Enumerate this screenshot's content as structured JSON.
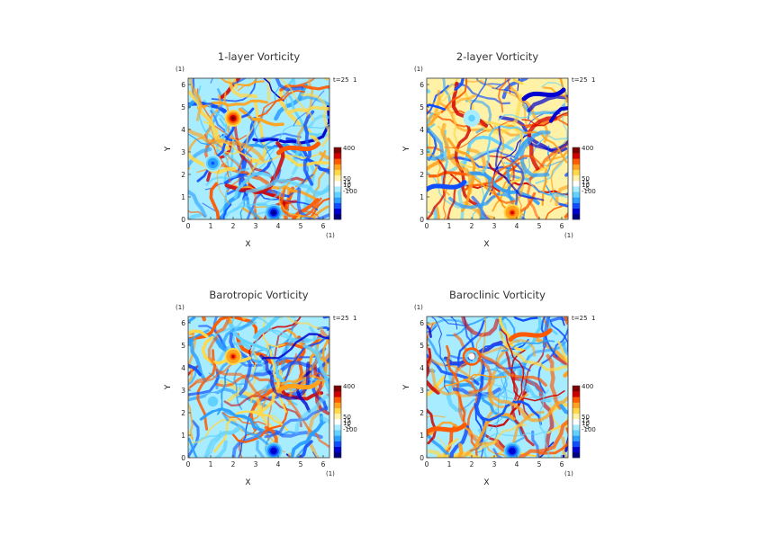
{
  "chart_data": [
    {
      "type": "heatmap",
      "title": "1-layer Vorticity",
      "xlabel": "X",
      "ylabel": "Y",
      "x_unit": "(1)",
      "y_unit": "(1)",
      "time_label": "t=25",
      "time_unit": "1",
      "xlim": [
        0,
        6.28
      ],
      "ylim": [
        0,
        6.28
      ],
      "xticks": [
        "0",
        "1",
        "2",
        "3",
        "4",
        "5",
        "6"
      ],
      "yticks": [
        "0",
        "1",
        "2",
        "3",
        "4",
        "5",
        "6"
      ],
      "colorbar_ticks": [
        "400",
        "50",
        "15",
        "10",
        "-5",
        "-100"
      ],
      "features": [
        {
          "kind": "positive vortex",
          "x": 2.0,
          "y": 4.5,
          "strength": 1.0
        },
        {
          "kind": "negative vortex",
          "x": 3.8,
          "y": 0.3,
          "strength": -1.0
        },
        {
          "kind": "negative vortex",
          "x": 1.1,
          "y": 2.5,
          "strength": -0.6
        },
        {
          "kind": "positive filament",
          "x": 4.9,
          "y": 3.2,
          "strength": 0.7
        }
      ]
    },
    {
      "type": "heatmap",
      "title": "2-layer Vorticity",
      "xlabel": "X",
      "ylabel": "Y",
      "x_unit": "(1)",
      "y_unit": "(1)",
      "time_label": "t=25",
      "time_unit": "1",
      "xlim": [
        0,
        6.28
      ],
      "ylim": [
        0,
        6.28
      ],
      "xticks": [
        "0",
        "1",
        "2",
        "3",
        "4",
        "5",
        "6"
      ],
      "yticks": [
        "0",
        "1",
        "2",
        "3",
        "4",
        "5",
        "6"
      ],
      "colorbar_ticks": [
        "400",
        "50",
        "15",
        "10",
        "-5",
        "-100"
      ],
      "features": [
        {
          "kind": "weak vortex",
          "x": 2.0,
          "y": 4.5,
          "strength": -0.3
        },
        {
          "kind": "positive vortex",
          "x": 3.8,
          "y": 0.3,
          "strength": 0.8
        },
        {
          "kind": "negative filament",
          "x": 5.2,
          "y": 5.6,
          "strength": -0.8
        },
        {
          "kind": "negative filament",
          "x": 0.8,
          "y": 1.5,
          "strength": -0.6
        }
      ]
    },
    {
      "type": "heatmap",
      "title": "Barotropic Vorticity",
      "xlabel": "X",
      "ylabel": "Y",
      "x_unit": "(1)",
      "y_unit": "(1)",
      "time_label": "t=25",
      "time_unit": "1",
      "xlim": [
        0,
        6.28
      ],
      "ylim": [
        0,
        6.28
      ],
      "xticks": [
        "0",
        "1",
        "2",
        "3",
        "4",
        "5",
        "6"
      ],
      "yticks": [
        "0",
        "1",
        "2",
        "3",
        "4",
        "5",
        "6"
      ],
      "colorbar_ticks": [
        "400",
        "50",
        "15",
        "10",
        "-5",
        "-100"
      ],
      "features": [
        {
          "kind": "positive vortex",
          "x": 2.0,
          "y": 4.5,
          "strength": 0.8
        },
        {
          "kind": "negative vortex",
          "x": 3.8,
          "y": 0.3,
          "strength": -0.9
        },
        {
          "kind": "negative vortex",
          "x": 1.1,
          "y": 2.5,
          "strength": -0.4
        },
        {
          "kind": "positive filament",
          "x": 4.9,
          "y": 3.2,
          "strength": 0.5
        }
      ]
    },
    {
      "type": "heatmap",
      "title": "Baroclinic Vorticity",
      "xlabel": "X",
      "ylabel": "Y",
      "x_unit": "(1)",
      "y_unit": "(1)",
      "time_label": "t=25",
      "time_unit": "1",
      "xlim": [
        0,
        6.28
      ],
      "ylim": [
        0,
        6.28
      ],
      "xticks": [
        "0",
        "1",
        "2",
        "3",
        "4",
        "5",
        "6"
      ],
      "yticks": [
        "0",
        "1",
        "2",
        "3",
        "4",
        "5",
        "6"
      ],
      "colorbar_ticks": [
        "400",
        "50",
        "15",
        "10",
        "-5",
        "-100"
      ],
      "features": [
        {
          "kind": "ring vortex",
          "x": 2.0,
          "y": 4.5,
          "strength": 0.6
        },
        {
          "kind": "negative vortex",
          "x": 3.8,
          "y": 0.3,
          "strength": -0.9
        },
        {
          "kind": "positive filament",
          "x": 4.6,
          "y": 5.5,
          "strength": 0.7
        },
        {
          "kind": "positive filament",
          "x": 0.8,
          "y": 1.3,
          "strength": 0.6
        }
      ]
    }
  ],
  "colors": {
    "colormap": [
      "#00007f",
      "#0000d0",
      "#0f4fff",
      "#2b9fff",
      "#61d1ff",
      "#a8ecff",
      "#ffffff",
      "#fff2a6",
      "#ffd84a",
      "#ffa21c",
      "#ff5a00",
      "#d10000",
      "#7f0000"
    ],
    "frame": "#333333"
  }
}
